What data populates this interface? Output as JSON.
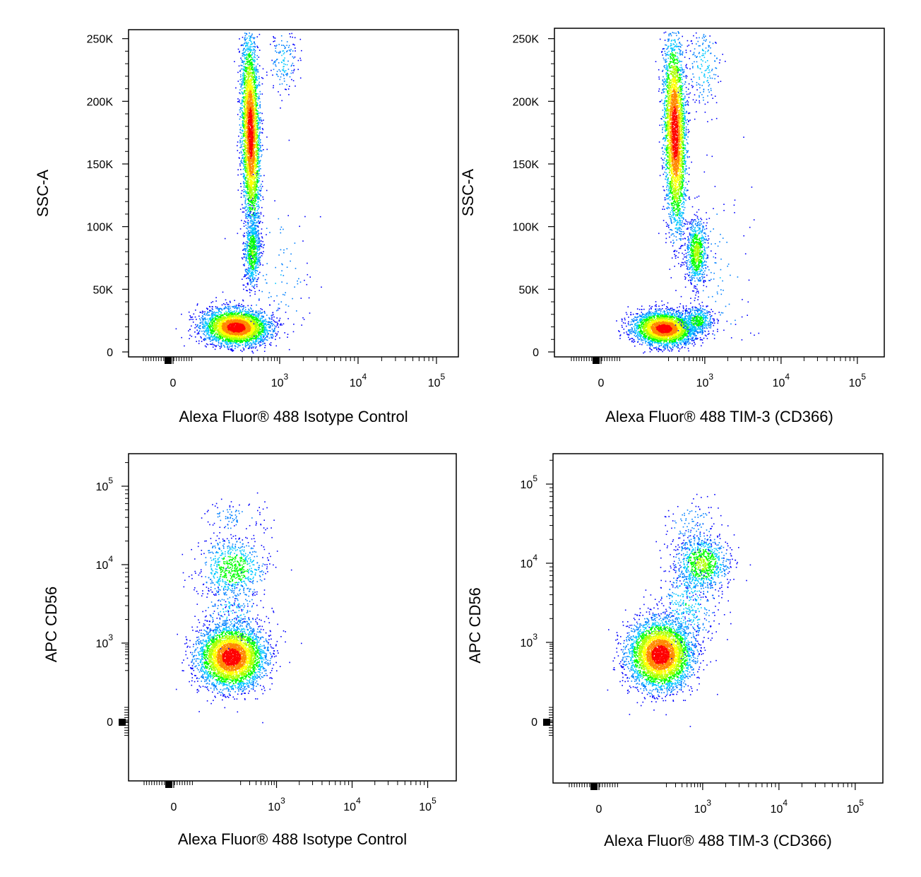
{
  "colors": {
    "density_low": "#0000ff",
    "density_mid_low": "#00c8ff",
    "density_mid": "#00ff00",
    "density_mid_high": "#ffff00",
    "density_high": "#ff0000",
    "frame": "#000000",
    "background": "#ffffff"
  },
  "chart_data": [
    {
      "type": "scatter",
      "style": "pseudocolor density dot plot",
      "xlabel": "Alexa Fluor® 488 Isotype Control",
      "ylabel": "SSC-A",
      "x_scale": "biexponential",
      "y_scale": "linear",
      "x_ticks": [
        {
          "value": 0,
          "label": "0"
        },
        {
          "value": 1000,
          "label": "10",
          "exp": "3"
        },
        {
          "value": 10000,
          "label": "10",
          "exp": "4"
        },
        {
          "value": 100000,
          "label": "10",
          "exp": "5"
        }
      ],
      "y_ticks": [
        {
          "value": 0,
          "label": "0"
        },
        {
          "value": 50000,
          "label": "50K"
        },
        {
          "value": 100000,
          "label": "100K"
        },
        {
          "value": 150000,
          "label": "150K"
        },
        {
          "value": 200000,
          "label": "200K"
        },
        {
          "value": 250000,
          "label": "250K"
        }
      ],
      "populations": [
        {
          "x": 150,
          "y": 20000,
          "sx": 150,
          "sy": 7000,
          "rot": 0.12,
          "n": 3600
        },
        {
          "x": 280,
          "y": 175000,
          "sx": 60,
          "sy": 38000,
          "rot": 0.02,
          "n": 3500
        },
        {
          "x": 300,
          "y": 80000,
          "sx": 60,
          "sy": 14000,
          "rot": 0.0,
          "n": 650
        },
        {
          "x": 1100,
          "y": 232000,
          "sx": 250,
          "sy": 15000,
          "rot": 0.0,
          "n": 150
        },
        {
          "x": 900,
          "y": 60000,
          "sx": 700,
          "sy": 35000,
          "rot": 0.0,
          "n": 110
        }
      ]
    },
    {
      "type": "scatter",
      "style": "pseudocolor density dot plot",
      "xlabel": "Alexa Fluor® 488 TIM-3 (CD366)",
      "ylabel": "SSC-A",
      "x_scale": "biexponential",
      "y_scale": "linear",
      "x_ticks": [
        {
          "value": 0,
          "label": "0"
        },
        {
          "value": 1000,
          "label": "10",
          "exp": "3"
        },
        {
          "value": 10000,
          "label": "10",
          "exp": "4"
        },
        {
          "value": 100000,
          "label": "10",
          "exp": "5"
        }
      ],
      "y_ticks": [
        {
          "value": 0,
          "label": "0"
        },
        {
          "value": 50000,
          "label": "50K"
        },
        {
          "value": 100000,
          "label": "100K"
        },
        {
          "value": 150000,
          "label": "150K"
        },
        {
          "value": 200000,
          "label": "200K"
        },
        {
          "value": 250000,
          "label": "250K"
        }
      ],
      "populations": [
        {
          "x": 160,
          "y": 19000,
          "sx": 150,
          "sy": 6500,
          "rot": 0.12,
          "n": 3300
        },
        {
          "x": 260,
          "y": 175000,
          "sx": 70,
          "sy": 38000,
          "rot": 0.02,
          "n": 3400
        },
        {
          "x": 680,
          "y": 80000,
          "sx": 180,
          "sy": 13000,
          "rot": 0.0,
          "n": 800
        },
        {
          "x": 950,
          "y": 228000,
          "sx": 300,
          "sy": 17000,
          "rot": 0.0,
          "n": 180
        },
        {
          "x": 700,
          "y": 25000,
          "sx": 300,
          "sy": 6000,
          "rot": 0.0,
          "n": 450
        },
        {
          "x": 1500,
          "y": 60000,
          "sx": 1000,
          "sy": 40000,
          "rot": 0.0,
          "n": 100
        }
      ]
    },
    {
      "type": "scatter",
      "style": "pseudocolor density dot plot",
      "xlabel": "Alexa Fluor® 488 Isotype Control",
      "ylabel": "APC CD56",
      "x_scale": "biexponential",
      "y_scale": "biexponential",
      "x_ticks": [
        {
          "value": 0,
          "label": "0"
        },
        {
          "value": 1000,
          "label": "10",
          "exp": "3"
        },
        {
          "value": 10000,
          "label": "10",
          "exp": "4"
        },
        {
          "value": 100000,
          "label": "10",
          "exp": "5"
        }
      ],
      "y_ticks": [
        {
          "value": 0,
          "label": "0"
        },
        {
          "value": 1000,
          "label": "10",
          "exp": "3"
        },
        {
          "value": 10000,
          "label": "10",
          "exp": "4"
        },
        {
          "value": 100000,
          "label": "10",
          "exp": "5"
        }
      ],
      "populations": [
        {
          "x": 130,
          "y": 450,
          "sx": 140,
          "sy": 600,
          "rot": 0.0,
          "n": 4200
        },
        {
          "x": 140,
          "y": 9000,
          "sx": 150,
          "sy": 5000,
          "rot": 0.0,
          "n": 700
        },
        {
          "x": 130,
          "y": 2500,
          "sx": 140,
          "sy": 1500,
          "rot": 0.0,
          "n": 200
        },
        {
          "x": 150,
          "y": 40000,
          "sx": 150,
          "sy": 12000,
          "rot": 0.0,
          "n": 100
        }
      ]
    },
    {
      "type": "scatter",
      "style": "pseudocolor density dot plot",
      "xlabel": "Alexa Fluor® 488 TIM-3 (CD366)",
      "ylabel": "APC CD56",
      "x_scale": "biexponential",
      "y_scale": "biexponential",
      "x_ticks": [
        {
          "value": 0,
          "label": "0"
        },
        {
          "value": 1000,
          "label": "10",
          "exp": "3"
        },
        {
          "value": 10000,
          "label": "10",
          "exp": "4"
        },
        {
          "value": 100000,
          "label": "10",
          "exp": "5"
        }
      ],
      "y_ticks": [
        {
          "value": 0,
          "label": "0"
        },
        {
          "value": 1000,
          "label": "10",
          "exp": "3"
        },
        {
          "value": 10000,
          "label": "10",
          "exp": "4"
        },
        {
          "value": 100000,
          "label": "10",
          "exp": "5"
        }
      ],
      "populations": [
        {
          "x": 150,
          "y": 500,
          "sx": 150,
          "sy": 650,
          "rot": 0.0,
          "n": 4300
        },
        {
          "x": 950,
          "y": 10000,
          "sx": 500,
          "sy": 5000,
          "rot": 0.0,
          "n": 900
        },
        {
          "x": 500,
          "y": 3000,
          "sx": 500,
          "sy": 2500,
          "rot": 0.0,
          "n": 350
        },
        {
          "x": 600,
          "y": 30000,
          "sx": 500,
          "sy": 15000,
          "rot": 0.0,
          "n": 120
        }
      ]
    }
  ]
}
